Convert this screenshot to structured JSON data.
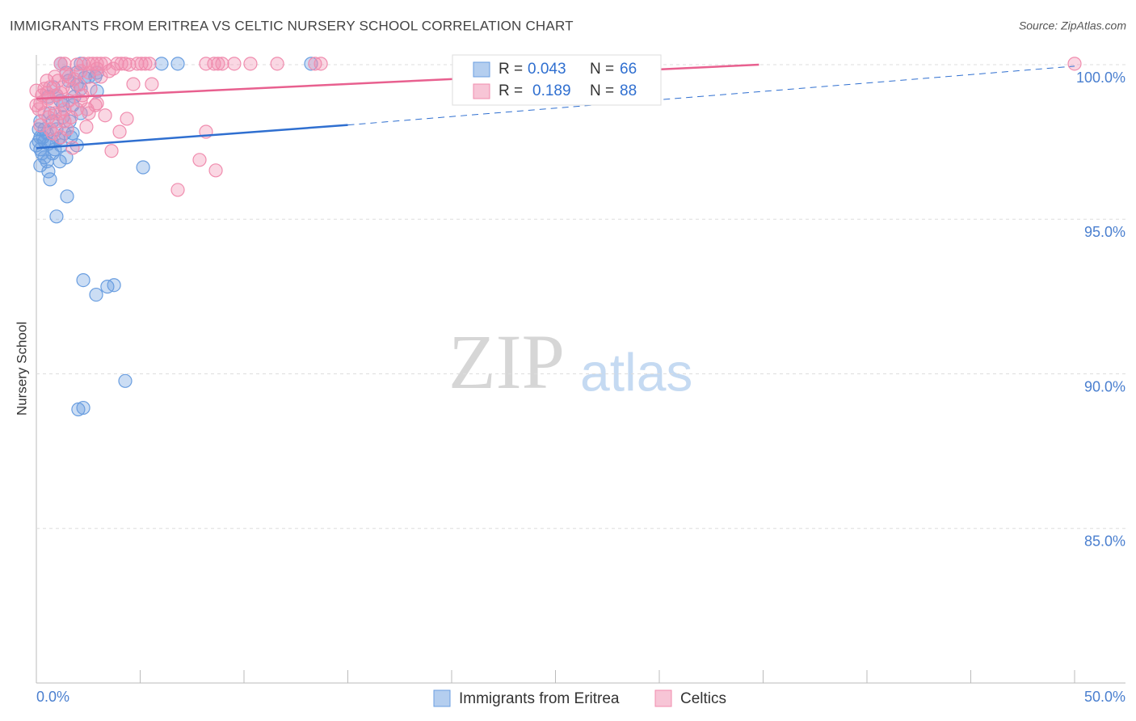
{
  "chart_data": {
    "type": "scatter",
    "title": "IMMIGRANTS FROM ERITREA VS CELTIC NURSERY SCHOOL CORRELATION CHART",
    "source": "Source: ZipAtlas.com",
    "y_label": "Nursery School",
    "watermark": [
      "ZIP",
      "atlas"
    ],
    "r_label": "R =",
    "n_label": "N =",
    "xlim": [
      0,
      50
    ],
    "ylim": [
      80,
      100
    ],
    "xticks": [
      {
        "value": 0,
        "label": "0.0%"
      },
      {
        "value": 50,
        "label": "50.0%"
      }
    ],
    "yticks": [
      {
        "value": 85,
        "label": "85.0%"
      },
      {
        "value": 90,
        "label": "90.0%"
      },
      {
        "value": 95,
        "label": "95.0%"
      },
      {
        "value": 100,
        "label": "100.0%"
      }
    ],
    "grid": true,
    "series": [
      {
        "name": "Immigrants from Eritrea",
        "color": "#6a9ee0",
        "line_color": "#2f6fd0",
        "r": 0.043,
        "n": 66,
        "x": [
          1.17,
          1.95,
          2.14,
          6.03,
          6.81,
          13.23,
          2.84,
          1.56,
          0.97,
          0.58,
          2.92,
          1.75,
          2.14,
          0.39,
          0.97,
          1.36,
          0.19,
          0.58,
          1.17,
          0.19,
          0.78,
          0.39,
          1.44,
          0.19,
          0.58,
          0.66,
          1.48,
          0.97,
          5.14,
          2.26,
          2.88,
          3.42,
          3.74,
          4.28,
          2.02,
          2.26,
          0.19,
          0.78,
          1.75,
          1.95,
          2.53,
          1.28,
          0.39,
          0,
          0.12,
          0.89,
          0.51,
          1.05,
          1.67,
          0.66,
          1.17,
          1.83,
          0.82,
          2.14,
          1.44,
          0.27,
          1.13,
          0.12,
          0.51,
          1.6,
          1.95,
          2.33,
          2.92,
          0.31,
          0.74,
          1.28
        ],
        "values": [
          100.03,
          99.74,
          100.03,
          100.03,
          100.03,
          100.03,
          99.61,
          99.48,
          99.01,
          98.96,
          99.14,
          98.69,
          98.43,
          97.91,
          97.91,
          97.78,
          97.65,
          97.44,
          97.39,
          97.26,
          97.13,
          97.0,
          97.0,
          96.74,
          96.55,
          96.29,
          95.74,
          95.09,
          96.68,
          93.03,
          92.56,
          92.82,
          92.87,
          89.77,
          88.85,
          88.9,
          98.17,
          98.17,
          97.78,
          99.35,
          99.61,
          98.69,
          97.52,
          97.39,
          97.91,
          97.26,
          97.78,
          97.6,
          97.65,
          98.43,
          98.83,
          98.96,
          99.27,
          99.22,
          99.74,
          97.13,
          96.87,
          97.52,
          96.87,
          98.17,
          97.39,
          99.58,
          99.74,
          97.65,
          97.52,
          98.3
        ],
        "trend": {
          "x": [
            0,
            15,
            50
          ],
          "y": [
            97.3,
            98.05,
            99.95
          ]
        }
      },
      {
        "name": "Celtics",
        "color": "#f08cae",
        "line_color": "#e8608f",
        "r": 0.189,
        "n": 88,
        "x": [
          1.17,
          1.36,
          2.26,
          2.53,
          2.72,
          2.92,
          3.11,
          3.31,
          3.89,
          4.09,
          4.28,
          4.86,
          5.06,
          5.25,
          5.45,
          8.17,
          8.56,
          8.75,
          8.95,
          9.53,
          10.31,
          11.6,
          13.42,
          13.7,
          50.0,
          2.14,
          2.92,
          3.5,
          0.89,
          1.44,
          2.53,
          4.67,
          5.56,
          0.39,
          0.66,
          0.51,
          1.75,
          2.06,
          1.17,
          0.97,
          0.19,
          0,
          0.78,
          1.36,
          1.95,
          2.84,
          2.92,
          2.45,
          0.39,
          0.58,
          1.17,
          1.67,
          3.31,
          4.36,
          0.19,
          0.97,
          1.48,
          2.41,
          0.78,
          1.17,
          1.75,
          4.01,
          3.62,
          8.17,
          7.86,
          8.64,
          6.81,
          0.51,
          2.61,
          0,
          1.28,
          1.83,
          0.58,
          0.12,
          0.89,
          1.56,
          2.22,
          0.27,
          1.05,
          3.11,
          3.7,
          4.47,
          1.95,
          1.56,
          2.14,
          0.66,
          1.36,
          2.53
        ],
        "values": [
          100.03,
          100.03,
          100.03,
          100.03,
          100.03,
          100.03,
          100.03,
          100.03,
          100.03,
          100.03,
          100.03,
          100.03,
          100.03,
          100.03,
          100.03,
          100.03,
          100.03,
          100.03,
          100.03,
          100.03,
          100.03,
          100.03,
          100.03,
          100.03,
          100.03,
          99.79,
          99.87,
          99.79,
          99.61,
          99.69,
          99.74,
          99.37,
          99.37,
          99.22,
          99.27,
          99.09,
          99.22,
          99.35,
          99.09,
          99.01,
          98.75,
          98.69,
          98.75,
          98.56,
          98.56,
          98.69,
          98.75,
          98.56,
          98.43,
          98.3,
          98.43,
          98.3,
          98.36,
          98.25,
          98.04,
          98.17,
          97.91,
          97.99,
          97.78,
          97.65,
          97.31,
          97.83,
          97.21,
          97.83,
          96.92,
          96.58,
          95.95,
          99.48,
          99.22,
          99.16,
          99.27,
          99.53,
          98.9,
          98.56,
          98.43,
          98.83,
          99.01,
          99.01,
          99.48,
          99.61,
          99.87,
          100.0,
          100.0,
          99.61,
          98.83,
          97.91,
          98.17,
          98.43
        ],
        "trend": {
          "x": [
            0,
            34.8
          ],
          "y": [
            98.9,
            100.0
          ]
        }
      }
    ]
  }
}
